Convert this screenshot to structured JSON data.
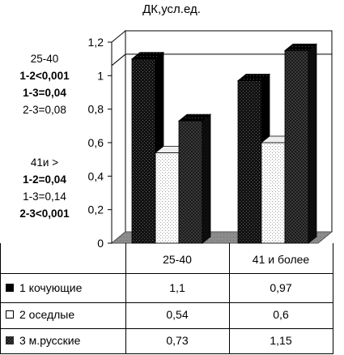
{
  "chart_data": {
    "type": "bar",
    "title": "ДК,усл.ед.",
    "categories": [
      "25-40",
      "41 и более"
    ],
    "series": [
      {
        "name": "1 кочующие",
        "values": [
          1.1,
          0.97
        ],
        "pattern": "dark-dotted",
        "marker": "■"
      },
      {
        "name": "2 оседлые",
        "values": [
          0.54,
          0.6
        ],
        "pattern": "light-dotted",
        "marker": "□"
      },
      {
        "name": "3 м.русские",
        "values": [
          0.73,
          1.15
        ],
        "pattern": "dark-checker",
        "marker": "■"
      }
    ],
    "yticks": [
      "0",
      "0,2",
      "0,4",
      "0,6",
      "0,8",
      "1",
      "1,2"
    ],
    "ylim": [
      0,
      1.2
    ],
    "gridlines": [
      1.06
    ],
    "legend": "data-table"
  },
  "stats": {
    "group1": {
      "title": "25-40",
      "lines": [
        {
          "text": "1-2<0,001",
          "bold": true
        },
        {
          "text": "1-3=0,04",
          "bold": true
        },
        {
          "text": "2-3=0,08",
          "bold": false
        }
      ]
    },
    "group2": {
      "title": "41и >",
      "lines": [
        {
          "text": "1-2=0,04",
          "bold": true
        },
        {
          "text": "1-3=0,14",
          "bold": false
        },
        {
          "text": "2-3<0,001",
          "bold": true
        }
      ]
    }
  },
  "table": {
    "headers": [
      "25-40",
      "41 и более"
    ],
    "rows": [
      {
        "label": "1 кочующие",
        "values": [
          "1,1",
          "0,97"
        ]
      },
      {
        "label": "2 оседлые",
        "values": [
          "0,54",
          "0,6"
        ]
      },
      {
        "label": "3 м.русские",
        "values": [
          "0,73",
          "1,15"
        ]
      }
    ]
  }
}
